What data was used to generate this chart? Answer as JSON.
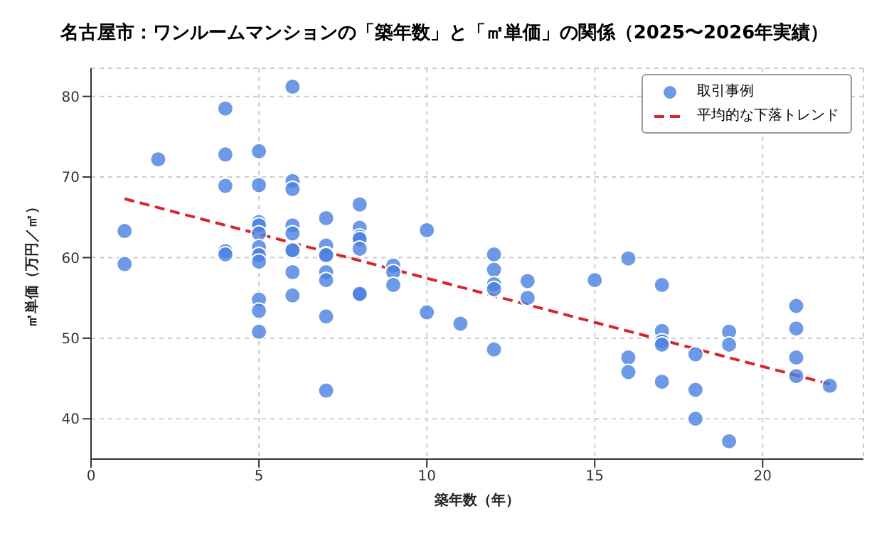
{
  "chart_data": {
    "type": "scatter",
    "title": "名古屋市：ワンルームマンションの「築年数」と「㎡単価」の関係（2025〜2026年実績）",
    "xlabel": "築年数（年）",
    "ylabel": "㎡単価（万円／㎡）",
    "xlim": [
      0,
      23
    ],
    "ylim": [
      35,
      83.5
    ],
    "xticks": [
      0,
      5,
      10,
      15,
      20
    ],
    "yticks": [
      40,
      50,
      60,
      70,
      80
    ],
    "grid": true,
    "legend": "top right",
    "series": [
      {
        "name": "取引事例",
        "marker": "circle",
        "color": "#4a7fe0",
        "x": [
          1,
          1,
          2,
          4,
          4,
          4,
          4,
          4,
          5,
          5,
          5,
          5,
          5,
          5,
          5,
          5,
          5,
          5,
          5,
          6,
          6,
          6,
          6,
          6,
          6,
          6,
          6,
          6,
          7,
          7,
          7,
          7,
          7,
          7,
          7,
          7,
          8,
          8,
          8,
          8,
          8,
          8,
          8,
          9,
          9,
          9,
          10,
          10,
          11,
          12,
          12,
          12,
          12,
          12,
          13,
          13,
          15,
          16,
          16,
          16,
          17,
          17,
          17,
          17,
          17,
          18,
          18,
          18,
          19,
          19,
          19,
          21,
          21,
          21,
          21,
          22
        ],
        "values": [
          63.3,
          59.2,
          72.2,
          78.5,
          72.8,
          68.9,
          60.8,
          60.4,
          73.2,
          69.0,
          64.4,
          64.0,
          63.0,
          61.3,
          60.3,
          59.5,
          54.8,
          53.4,
          50.8,
          81.2,
          69.5,
          68.5,
          64.0,
          63.0,
          61.0,
          60.9,
          58.2,
          55.3,
          64.9,
          61.5,
          60.4,
          60.3,
          58.2,
          57.2,
          52.7,
          43.5,
          66.6,
          63.7,
          62.6,
          62.3,
          61.1,
          55.4,
          55.5,
          59.0,
          58.2,
          56.6,
          63.4,
          53.2,
          51.8,
          60.4,
          58.5,
          56.7,
          56.1,
          48.6,
          57.1,
          55.0,
          57.2,
          59.9,
          47.6,
          45.8,
          56.6,
          50.9,
          49.6,
          49.2,
          44.6,
          48.0,
          43.6,
          40.0,
          50.8,
          49.2,
          37.2,
          54.0,
          51.2,
          47.6,
          45.3,
          44.1
        ]
      },
      {
        "name": "平均的な下落トレンド",
        "type": "line",
        "color": "#d62728",
        "line_style": "dashed",
        "x": [
          1,
          22
        ],
        "values": [
          67.3,
          44.3
        ]
      }
    ]
  }
}
